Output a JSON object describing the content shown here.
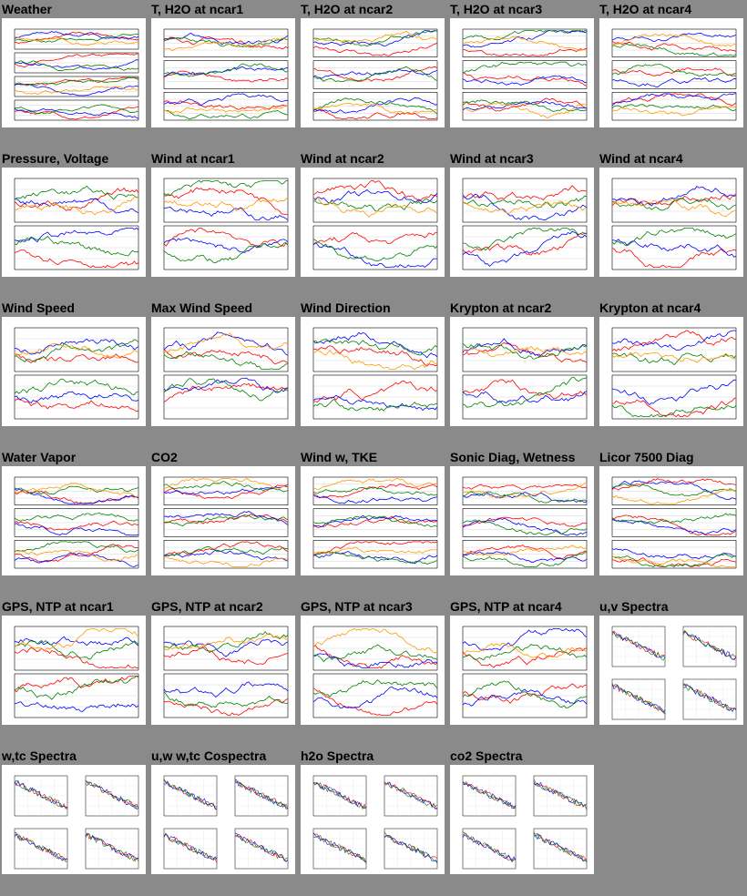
{
  "tiles": [
    {
      "title": "Weather",
      "kind": "stack4"
    },
    {
      "title": "T, H2O at ncar1",
      "kind": "stack3"
    },
    {
      "title": "T, H2O at ncar2",
      "kind": "stack3"
    },
    {
      "title": "T, H2O at ncar3",
      "kind": "stack3"
    },
    {
      "title": "T, H2O at ncar4",
      "kind": "stack3"
    },
    {
      "title": "Pressure, Voltage",
      "kind": "stack2"
    },
    {
      "title": "Wind at ncar1",
      "kind": "stack2"
    },
    {
      "title": "Wind at ncar2",
      "kind": "stack2"
    },
    {
      "title": "Wind at ncar3",
      "kind": "stack2"
    },
    {
      "title": "Wind at ncar4",
      "kind": "stack2"
    },
    {
      "title": "Wind Speed",
      "kind": "stack2"
    },
    {
      "title": "Max Wind Speed",
      "kind": "stack2"
    },
    {
      "title": "Wind Direction",
      "kind": "stack2"
    },
    {
      "title": "Krypton at ncar2",
      "kind": "stack2"
    },
    {
      "title": "Krypton at ncar4",
      "kind": "stack2"
    },
    {
      "title": "Water Vapor",
      "kind": "stack3"
    },
    {
      "title": "CO2",
      "kind": "stack3"
    },
    {
      "title": "Wind w, TKE",
      "kind": "stack3"
    },
    {
      "title": "Sonic Diag, Wetness",
      "kind": "stack3"
    },
    {
      "title": "Licor 7500 Diag",
      "kind": "stack3"
    },
    {
      "title": "GPS, NTP at ncar1",
      "kind": "stack2"
    },
    {
      "title": "GPS, NTP at ncar2",
      "kind": "stack2"
    },
    {
      "title": "GPS, NTP at ncar3",
      "kind": "stack2"
    },
    {
      "title": "GPS, NTP at ncar4",
      "kind": "stack2"
    },
    {
      "title": "u,v Spectra",
      "kind": "spectra"
    },
    {
      "title": "w,tc Spectra",
      "kind": "spectra"
    },
    {
      "title": "u,w w,tc Cospectra",
      "kind": "spectra"
    },
    {
      "title": "h2o Spectra",
      "kind": "spectra"
    },
    {
      "title": "co2 Spectra",
      "kind": "spectra"
    }
  ],
  "colors": {
    "background": "#8a8a8a",
    "series": [
      "#ff0000",
      "#0000ff",
      "#008000",
      "#ff9900"
    ]
  }
}
